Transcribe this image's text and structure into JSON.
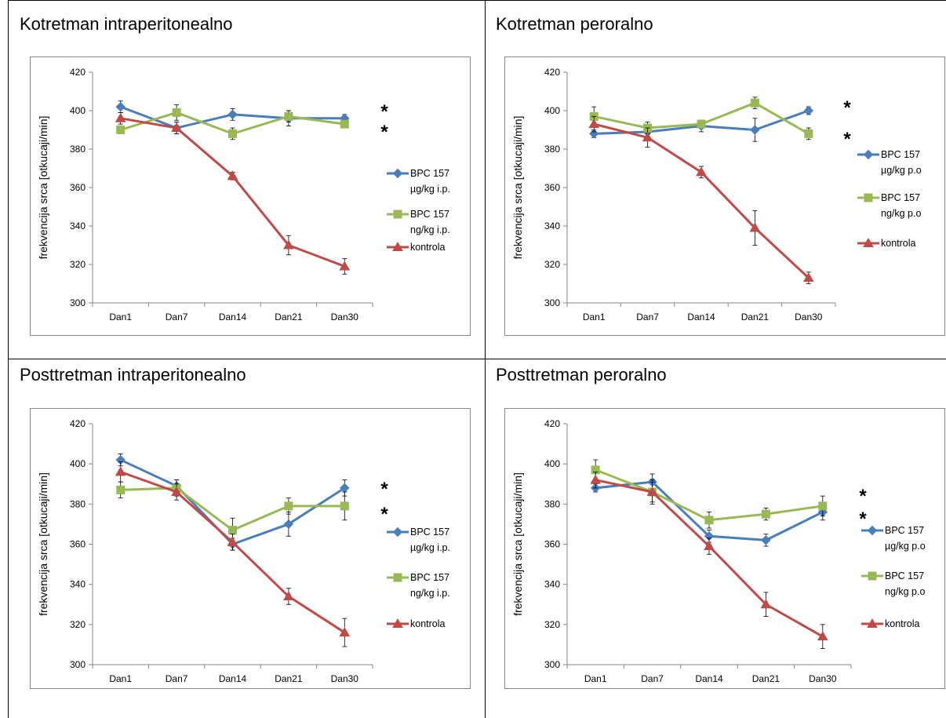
{
  "colors": {
    "BPC 157 µg": "#4a7ebb",
    "BPC 157 ng": "#98b954",
    "kontrola": "#be4b48",
    "axis": "#868686",
    "grid": "#d9d9d9"
  },
  "chart_data": [
    {
      "type": "line",
      "title": "Kotretman intraperitonealno",
      "ylabel": "frekvencija srca [otkucaji/min]",
      "xlabel": "",
      "categories": [
        "Dan1",
        "Dan7",
        "Dan14",
        "Dan21",
        "Dan30"
      ],
      "ylim": [
        300,
        420
      ],
      "yticks": [
        300,
        320,
        340,
        360,
        380,
        400,
        420
      ],
      "grid": false,
      "legend": "right",
      "annotations": [
        "*",
        "*"
      ],
      "series": [
        {
          "name": "BPC 157 µg/kg i.p.",
          "marker": "diamond",
          "values": [
            402,
            391,
            398,
            396,
            396
          ],
          "errors": [
            3,
            3,
            3,
            4,
            2
          ]
        },
        {
          "name": "BPC 157 ng/kg i.p.",
          "marker": "square",
          "values": [
            390,
            399,
            388,
            397,
            393
          ],
          "errors": [
            2,
            4,
            3,
            3,
            2
          ]
        },
        {
          "name": "kontrola",
          "marker": "triangle",
          "values": [
            396,
            391,
            366,
            330,
            319
          ],
          "errors": [
            3,
            3,
            2,
            5,
            4
          ]
        }
      ]
    },
    {
      "type": "line",
      "title": "Kotretman peroralno",
      "ylabel": "frekvencija srca [otkucaji/min]",
      "xlabel": "",
      "categories": [
        "Dan1",
        "Dan7",
        "Dan14",
        "Dan21",
        "Dan30"
      ],
      "ylim": [
        300,
        420
      ],
      "yticks": [
        300,
        320,
        340,
        360,
        380,
        400,
        420
      ],
      "grid": false,
      "legend": "right",
      "annotations": [
        "*",
        "*"
      ],
      "series": [
        {
          "name": "BPC 157 µg/kg p.o",
          "marker": "diamond",
          "values": [
            388,
            389,
            392,
            390,
            400
          ],
          "errors": [
            2,
            3,
            3,
            6,
            2
          ]
        },
        {
          "name": "BPC 157 ng/kg p.o",
          "marker": "square",
          "values": [
            397,
            391,
            393,
            404,
            388
          ],
          "errors": [
            5,
            3,
            2,
            3,
            3
          ]
        },
        {
          "name": "kontrola",
          "marker": "triangle",
          "values": [
            393,
            386,
            368,
            339,
            313
          ],
          "errors": [
            4,
            5,
            3,
            9,
            3
          ]
        }
      ]
    },
    {
      "type": "line",
      "title": "Posttretman intraperitonealno",
      "ylabel": "frekvencija srca [otkucaji/min]",
      "xlabel": "",
      "categories": [
        "Dan1",
        "Dan7",
        "Dan14",
        "Dan21",
        "Dan30"
      ],
      "ylim": [
        300,
        420
      ],
      "yticks": [
        300,
        320,
        340,
        360,
        380,
        400,
        420
      ],
      "grid": false,
      "legend": "right",
      "annotations": [
        "*",
        "*"
      ],
      "series": [
        {
          "name": "BPC 157 µg/kg i.p.",
          "marker": "diamond",
          "values": [
            402,
            389,
            360,
            370,
            388
          ],
          "errors": [
            3,
            3,
            3,
            6,
            4
          ]
        },
        {
          "name": "BPC 157 ng/kg i.p.",
          "marker": "square",
          "values": [
            387,
            388,
            367,
            379,
            379
          ],
          "errors": [
            4,
            4,
            6,
            4,
            7
          ]
        },
        {
          "name": "kontrola",
          "marker": "triangle",
          "values": [
            396,
            386,
            361,
            334,
            316
          ],
          "errors": [
            5,
            4,
            4,
            4,
            7
          ]
        }
      ]
    },
    {
      "type": "line",
      "title": "Posttretman peroralno",
      "ylabel": "frekvencija srca [otkucaji/min]",
      "xlabel": "",
      "categories": [
        "Dan1",
        "Dan7",
        "Dan14",
        "Dan21",
        "Dan30"
      ],
      "ylim": [
        300,
        420
      ],
      "yticks": [
        300,
        320,
        340,
        360,
        380,
        400,
        420
      ],
      "grid": false,
      "legend": "right",
      "annotations": [
        "*",
        "*"
      ],
      "series": [
        {
          "name": "BPC 157 µg/kg p.o",
          "marker": "diamond",
          "values": [
            388,
            391,
            364,
            362,
            376
          ],
          "errors": [
            2,
            4,
            3,
            3,
            4
          ]
        },
        {
          "name": "BPC 157 ng/kg p.o",
          "marker": "square",
          "values": [
            397,
            386,
            372,
            375,
            379
          ],
          "errors": [
            5,
            6,
            4,
            3,
            5
          ]
        },
        {
          "name": "kontrola",
          "marker": "triangle",
          "values": [
            392,
            386,
            359,
            330,
            314
          ],
          "errors": [
            4,
            5,
            4,
            6,
            6
          ]
        }
      ]
    }
  ]
}
